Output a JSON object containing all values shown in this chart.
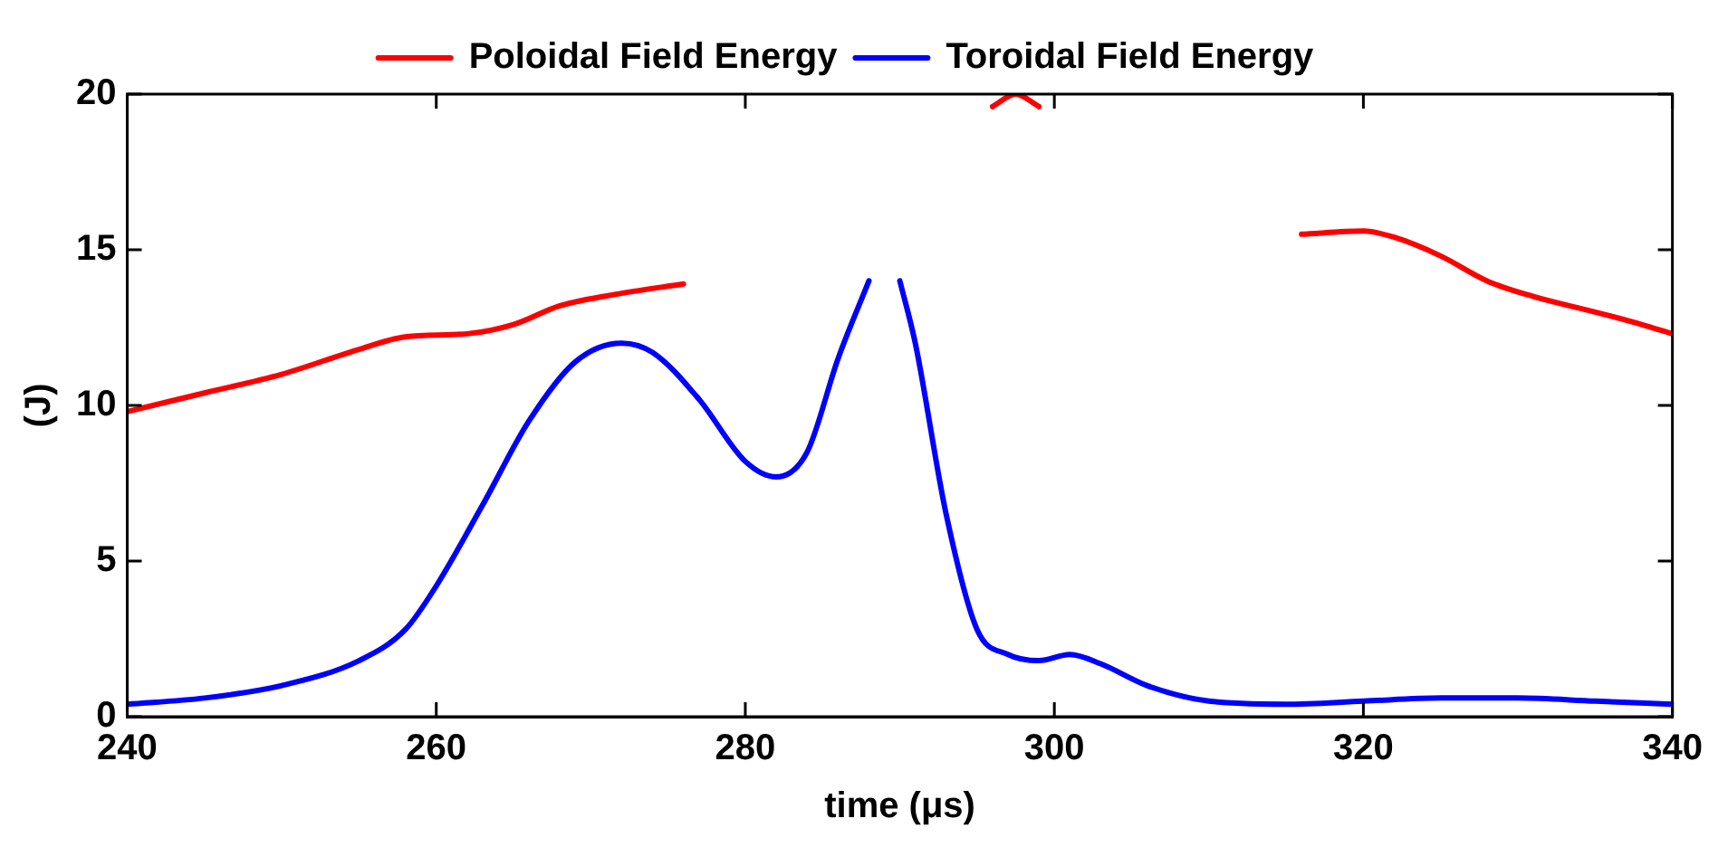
{
  "chart_data": {
    "type": "line",
    "xlabel": "time (μs)",
    "ylabel": "(J)",
    "xlim": [
      240,
      340
    ],
    "ylim": [
      0,
      20
    ],
    "xticks": [
      240,
      260,
      280,
      300,
      320,
      340
    ],
    "yticks": [
      0,
      5,
      10,
      15,
      20
    ],
    "grid": false,
    "legend": "top",
    "marker": "none",
    "line_style": "solid",
    "series": [
      {
        "name": "Poloidal Field Energy",
        "color": "#ff0000",
        "x": [
          240,
          245,
          250,
          255,
          258,
          262,
          265,
          268,
          272,
          276,
          280,
          294,
          296,
          297.5,
          299,
          301,
          314,
          316,
          320,
          322,
          325,
          328,
          331,
          335,
          338,
          340
        ],
        "values": [
          9.8,
          10.4,
          11.0,
          11.8,
          12.2,
          12.3,
          12.6,
          13.2,
          13.6,
          13.9,
          null,
          null,
          19.6,
          20,
          19.6,
          null,
          null,
          15.5,
          15.6,
          15.4,
          14.8,
          14.0,
          13.5,
          13.0,
          12.6,
          12.3
        ]
      },
      {
        "name": "Toroidal Field Energy",
        "color": "#0000ff",
        "x": [
          240,
          245,
          250,
          255,
          258,
          260,
          263,
          266,
          269,
          272,
          274,
          277,
          280,
          282,
          284,
          286,
          288,
          289,
          290,
          291,
          293,
          295,
          297,
          299,
          301,
          303,
          306,
          310,
          315,
          320,
          325,
          330,
          335,
          340
        ],
        "values": [
          0.4,
          0.6,
          1.0,
          1.8,
          2.8,
          4.2,
          6.8,
          9.5,
          11.4,
          12.0,
          11.7,
          10.2,
          8.2,
          7.7,
          8.5,
          11.5,
          14.0,
          null,
          14.0,
          12.0,
          6.5,
          2.8,
          2.0,
          1.8,
          2.0,
          1.7,
          1.0,
          0.5,
          0.4,
          0.5,
          0.6,
          0.6,
          0.5,
          0.4
        ]
      }
    ]
  }
}
